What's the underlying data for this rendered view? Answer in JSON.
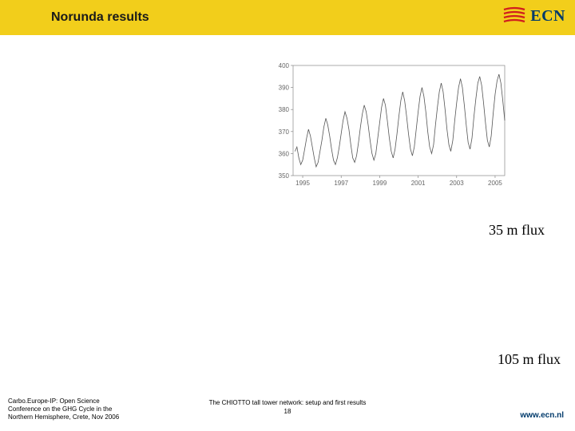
{
  "header": {
    "title": "Norunda results",
    "bg_color": "#f2ce1b"
  },
  "logo": {
    "text": "ECN",
    "stripe_color": "#d01e1e",
    "text_color": "#003a6b"
  },
  "chart": {
    "type": "line",
    "xlim": [
      1994.5,
      2005.5
    ],
    "ylim": [
      350,
      400
    ],
    "xticks": [
      1995,
      1997,
      1999,
      2001,
      2003,
      2005
    ],
    "yticks": [
      350,
      360,
      370,
      380,
      390,
      400
    ],
    "line_color": "#555555",
    "line_width": 0.8,
    "background_color": "#ffffff",
    "axis_color": "#888888",
    "tick_fontsize": 8,
    "series": [
      [
        1994.6,
        361
      ],
      [
        1994.7,
        363
      ],
      [
        1994.8,
        358
      ],
      [
        1994.9,
        355
      ],
      [
        1995.0,
        357
      ],
      [
        1995.1,
        362
      ],
      [
        1995.2,
        367
      ],
      [
        1995.3,
        371
      ],
      [
        1995.4,
        368
      ],
      [
        1995.5,
        363
      ],
      [
        1995.6,
        358
      ],
      [
        1995.7,
        354
      ],
      [
        1995.8,
        356
      ],
      [
        1995.9,
        361
      ],
      [
        1996.0,
        366
      ],
      [
        1996.1,
        372
      ],
      [
        1996.2,
        376
      ],
      [
        1996.3,
        373
      ],
      [
        1996.4,
        368
      ],
      [
        1996.5,
        362
      ],
      [
        1996.6,
        357
      ],
      [
        1996.7,
        355
      ],
      [
        1996.8,
        358
      ],
      [
        1996.9,
        363
      ],
      [
        1997.0,
        369
      ],
      [
        1997.1,
        375
      ],
      [
        1997.2,
        379
      ],
      [
        1997.3,
        376
      ],
      [
        1997.4,
        371
      ],
      [
        1997.5,
        364
      ],
      [
        1997.6,
        358
      ],
      [
        1997.7,
        356
      ],
      [
        1997.8,
        359
      ],
      [
        1997.9,
        365
      ],
      [
        1998.0,
        372
      ],
      [
        1998.1,
        378
      ],
      [
        1998.2,
        382
      ],
      [
        1998.3,
        379
      ],
      [
        1998.4,
        373
      ],
      [
        1998.5,
        366
      ],
      [
        1998.6,
        360
      ],
      [
        1998.7,
        357
      ],
      [
        1998.8,
        360
      ],
      [
        1998.9,
        367
      ],
      [
        1999.0,
        374
      ],
      [
        1999.1,
        381
      ],
      [
        1999.2,
        385
      ],
      [
        1999.3,
        382
      ],
      [
        1999.4,
        375
      ],
      [
        1999.5,
        367
      ],
      [
        1999.6,
        361
      ],
      [
        1999.7,
        358
      ],
      [
        1999.8,
        362
      ],
      [
        1999.9,
        369
      ],
      [
        2000.0,
        377
      ],
      [
        2000.1,
        384
      ],
      [
        2000.2,
        388
      ],
      [
        2000.3,
        384
      ],
      [
        2000.4,
        377
      ],
      [
        2000.5,
        369
      ],
      [
        2000.6,
        362
      ],
      [
        2000.7,
        359
      ],
      [
        2000.8,
        363
      ],
      [
        2000.9,
        371
      ],
      [
        2001.0,
        379
      ],
      [
        2001.1,
        386
      ],
      [
        2001.2,
        390
      ],
      [
        2001.3,
        386
      ],
      [
        2001.4,
        379
      ],
      [
        2001.5,
        370
      ],
      [
        2001.6,
        363
      ],
      [
        2001.7,
        360
      ],
      [
        2001.8,
        364
      ],
      [
        2001.9,
        373
      ],
      [
        2002.0,
        381
      ],
      [
        2002.1,
        388
      ],
      [
        2002.2,
        392
      ],
      [
        2002.3,
        388
      ],
      [
        2002.4,
        380
      ],
      [
        2002.5,
        371
      ],
      [
        2002.6,
        364
      ],
      [
        2002.7,
        361
      ],
      [
        2002.8,
        366
      ],
      [
        2002.9,
        375
      ],
      [
        2003.0,
        383
      ],
      [
        2003.1,
        390
      ],
      [
        2003.2,
        394
      ],
      [
        2003.3,
        390
      ],
      [
        2003.4,
        382
      ],
      [
        2003.5,
        373
      ],
      [
        2003.6,
        365
      ],
      [
        2003.7,
        362
      ],
      [
        2003.8,
        367
      ],
      [
        2003.9,
        377
      ],
      [
        2004.0,
        385
      ],
      [
        2004.1,
        392
      ],
      [
        2004.2,
        395
      ],
      [
        2004.3,
        391
      ],
      [
        2004.4,
        383
      ],
      [
        2004.5,
        374
      ],
      [
        2004.6,
        366
      ],
      [
        2004.7,
        363
      ],
      [
        2004.8,
        368
      ],
      [
        2004.9,
        378
      ],
      [
        2005.0,
        387
      ],
      [
        2005.1,
        393
      ],
      [
        2005.2,
        396
      ],
      [
        2005.3,
        392
      ],
      [
        2005.4,
        384
      ],
      [
        2005.5,
        375
      ]
    ]
  },
  "labels": {
    "flux35": "35 m flux",
    "flux105": "105 m flux"
  },
  "footer": {
    "left_line1": "Carbo.Europe-IP: Open Science",
    "left_line2": "Conference on the GHG Cycle in the",
    "left_line3": "Northern Hemisphere, Crete, Nov 2006",
    "center": "The CHIOTTO tall tower network: setup and first results",
    "page": "18",
    "url": "www.ecn.nl",
    "url_color": "#003a6b"
  }
}
